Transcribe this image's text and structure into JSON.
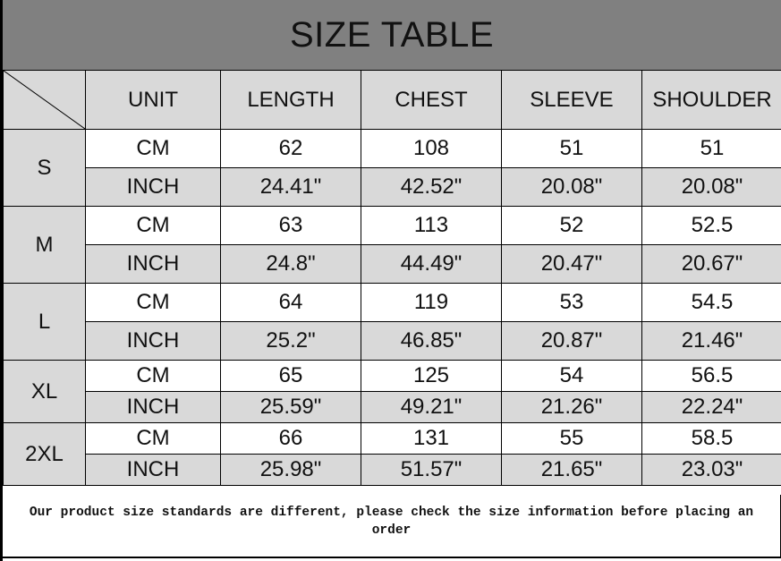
{
  "title": "SIZE TABLE",
  "headers": [
    "UNIT",
    "LENGTH",
    "CHEST",
    "SLEEVE",
    "SHOULDER"
  ],
  "sizes": [
    {
      "size": "S",
      "rows": [
        [
          "CM",
          "62",
          "108",
          "51",
          "51"
        ],
        [
          "INCH",
          "24.41\"",
          "42.52\"",
          "20.08\"",
          "20.08\""
        ]
      ]
    },
    {
      "size": "M",
      "rows": [
        [
          "CM",
          "63",
          "113",
          "52",
          "52.5"
        ],
        [
          "INCH",
          "24.8\"",
          "44.49\"",
          "20.47\"",
          "20.67\""
        ]
      ]
    },
    {
      "size": "L",
      "rows": [
        [
          "CM",
          "64",
          "119",
          "53",
          "54.5"
        ],
        [
          "INCH",
          "25.2\"",
          "46.85\"",
          "20.87\"",
          "21.46\""
        ]
      ]
    },
    {
      "size": "XL",
      "rows": [
        [
          "CM",
          "65",
          "125",
          "54",
          "56.5"
        ],
        [
          "INCH",
          "25.59\"",
          "49.21\"",
          "21.26\"",
          "22.24\""
        ]
      ]
    },
    {
      "size": "2XL",
      "rows": [
        [
          "CM",
          "66",
          "131",
          "55",
          "58.5"
        ],
        [
          "INCH",
          "25.98\"",
          "51.57\"",
          "21.65\"",
          "23.03\""
        ]
      ]
    }
  ],
  "footer_note": "Our product size standards are different, please check the size information before placing an order",
  "colors": {
    "title_bg": "#808080",
    "header_bg": "#d9d9d9",
    "inch_row_bg": "#d9d9d9",
    "cm_row_bg": "#ffffff"
  }
}
